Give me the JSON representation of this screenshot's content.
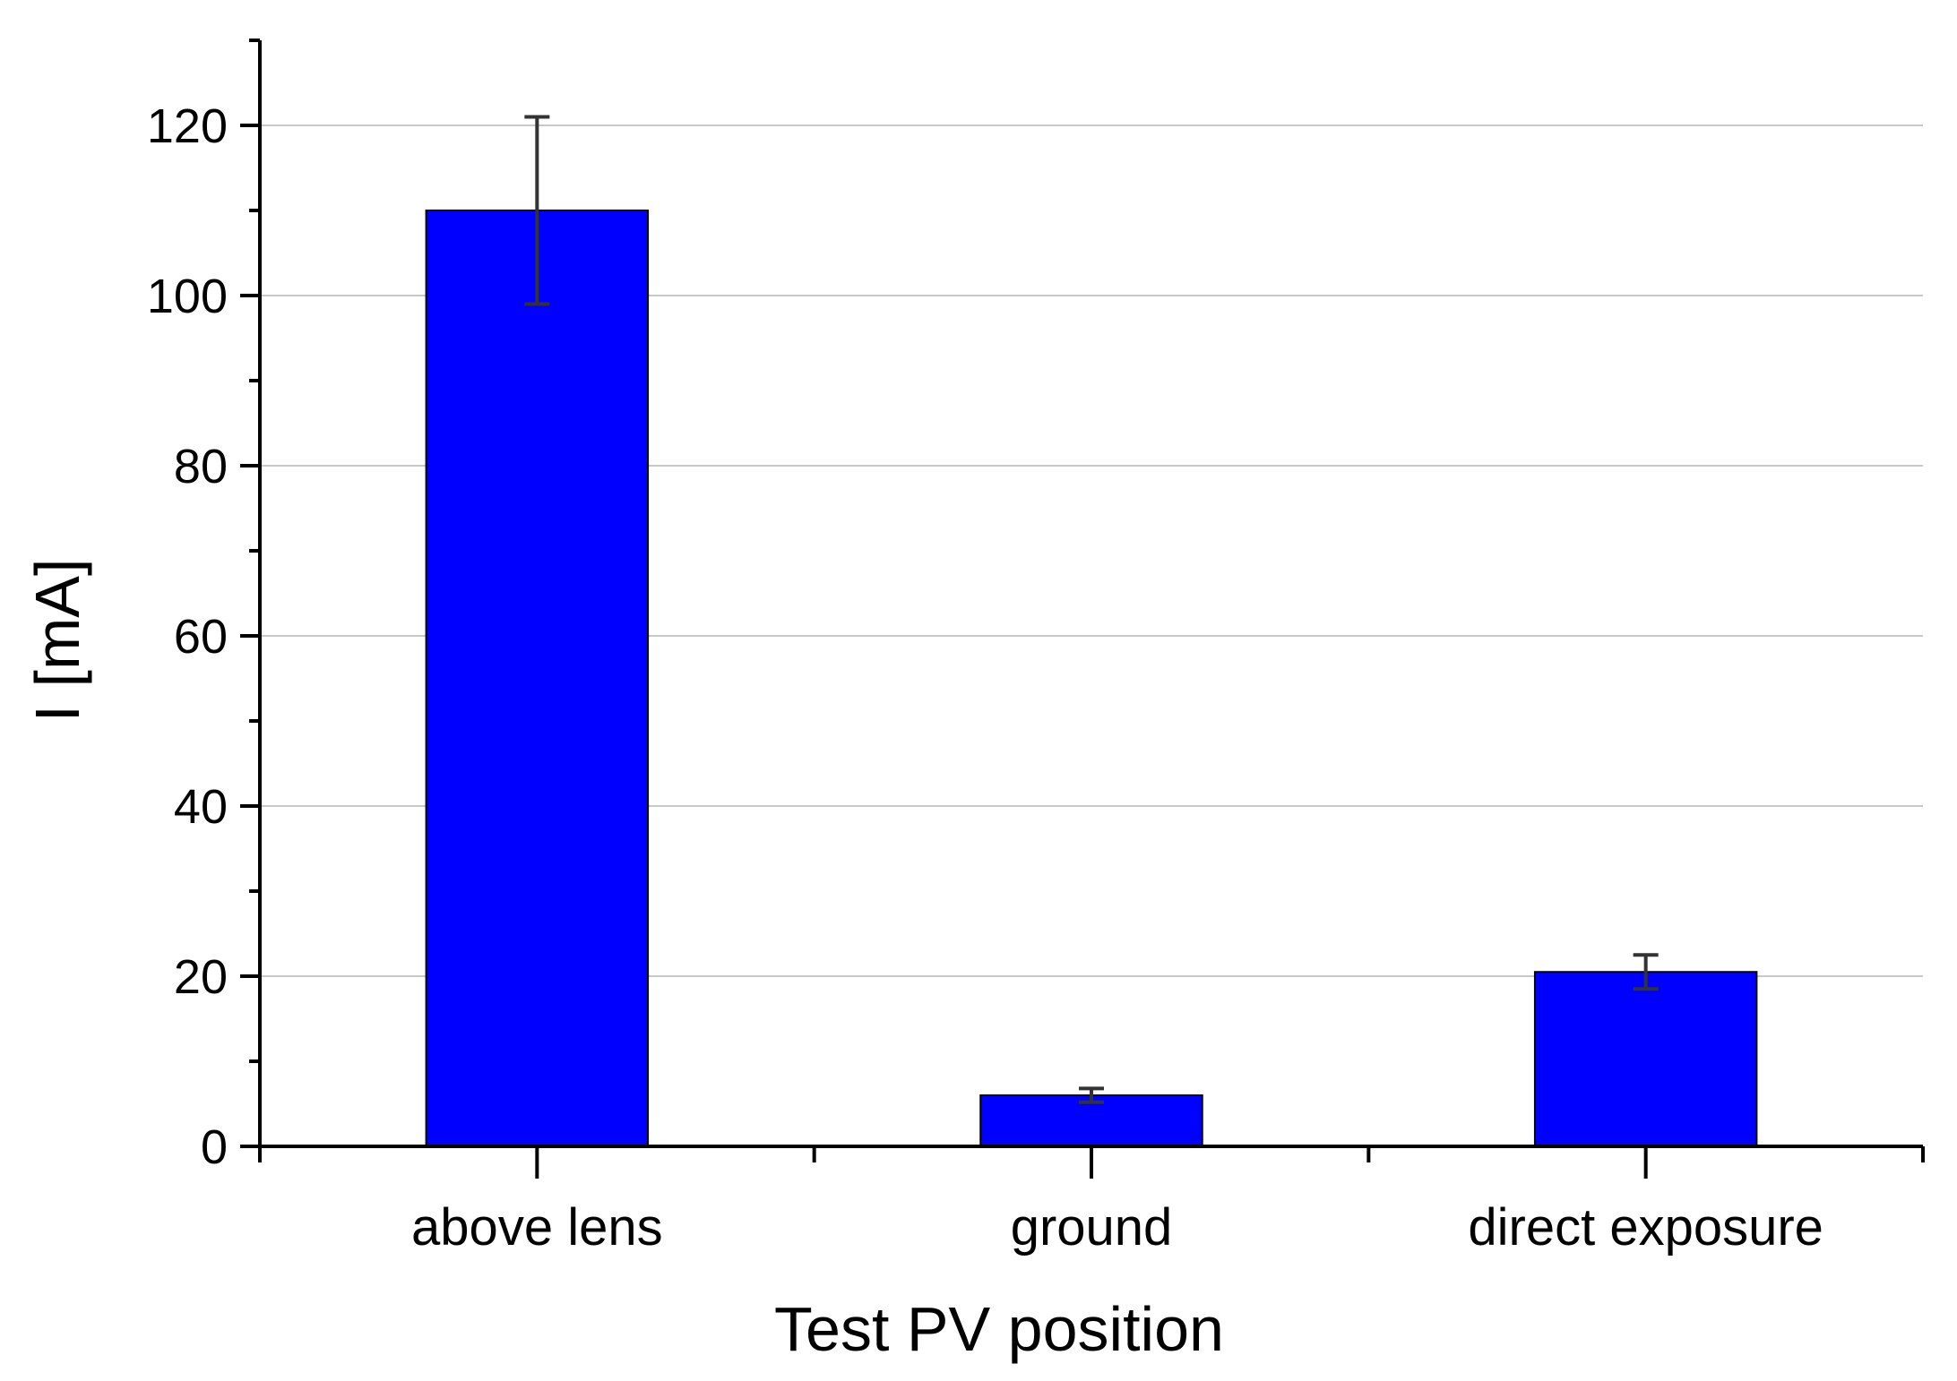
{
  "chart_data": {
    "type": "bar",
    "title": "",
    "xlabel": "Test PV position",
    "ylabel": "I [mA]",
    "categories": [
      "above lens",
      "ground",
      "direct exposure"
    ],
    "series": [
      {
        "name": "I",
        "values": [
          110,
          6,
          20.5
        ],
        "errors": [
          11,
          0.8,
          2
        ]
      }
    ],
    "ylim": [
      0,
      130
    ],
    "yticks": [
      0,
      20,
      40,
      60,
      80,
      100,
      120
    ],
    "y_minor_step": 10,
    "grid": "horizontal",
    "colors": {
      "bar": "#0000ff",
      "bar_edge": "#000000",
      "error_bar": "#333333",
      "grid": "#c8c8c8",
      "axis": "#000000"
    }
  }
}
